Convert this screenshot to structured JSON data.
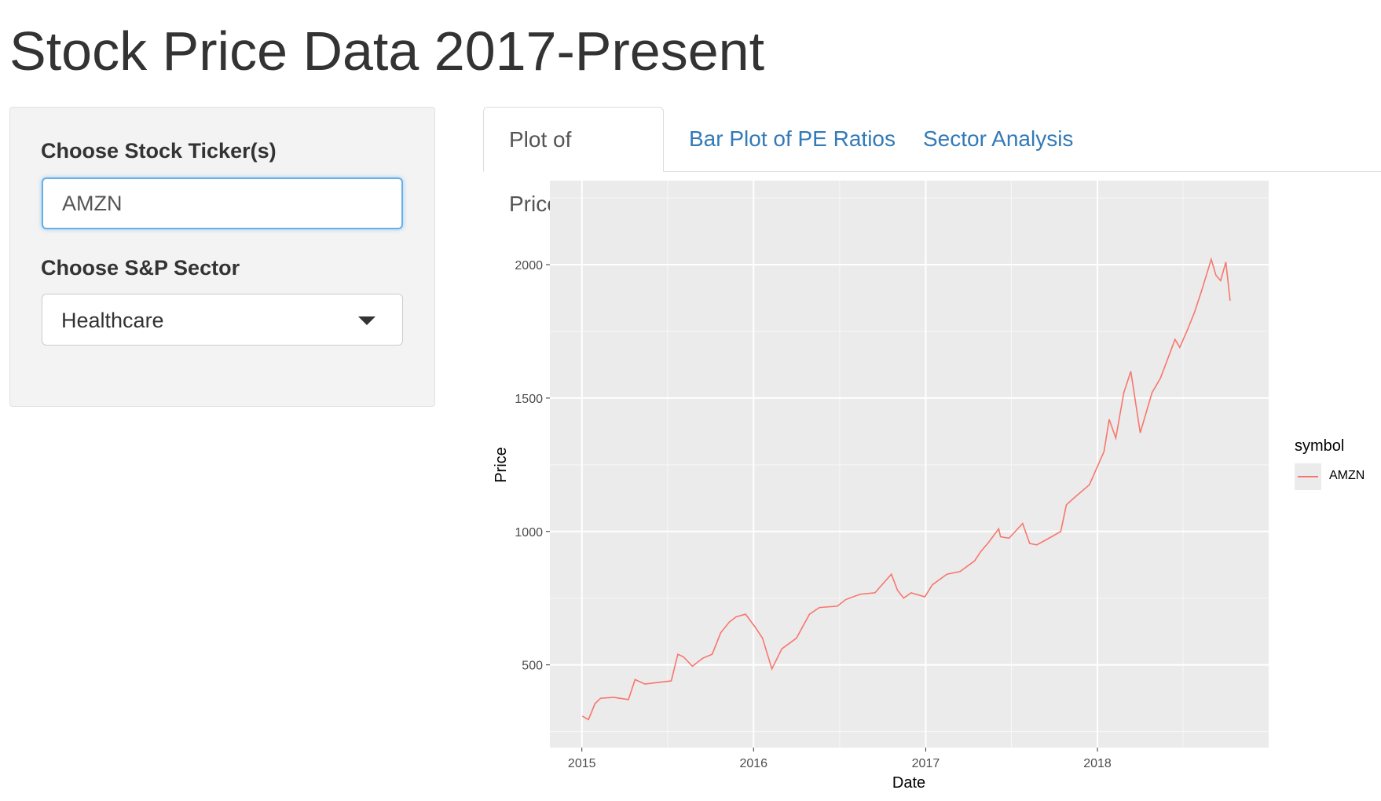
{
  "page": {
    "title": "Stock Price Data 2017-Present"
  },
  "sidebar": {
    "ticker_label": "Choose Stock Ticker(s)",
    "ticker_value": "AMZN",
    "sector_label": "Choose S&P Sector",
    "sector_value": "Healthcare",
    "sector_icon": "caret-down-icon"
  },
  "tabs": [
    {
      "label": "Plot of Prices",
      "active": true
    },
    {
      "label": "Bar Plot of PE Ratios",
      "active": false
    },
    {
      "label": "Sector Analysis",
      "active": false
    }
  ],
  "colors": {
    "line": "#f8766d",
    "panel_bg": "#ebebeb",
    "link": "#337ab7"
  },
  "chart_data": {
    "type": "line",
    "title": "",
    "xlabel": "Date",
    "ylabel": "Price",
    "x_ticks": [
      "2015",
      "2016",
      "2017",
      "2018"
    ],
    "y_ticks": [
      500,
      1000,
      1500,
      2000
    ],
    "xlim": [
      "2014-10-25",
      "2018-12-31"
    ],
    "ylim": [
      190,
      2315
    ],
    "grid": true,
    "legend": {
      "title": "symbol",
      "position": "right",
      "entries": [
        "AMZN"
      ]
    },
    "series": [
      {
        "name": "AMZN",
        "x": [
          "2015-01-02",
          "2015-01-15",
          "2015-01-29",
          "2015-02-10",
          "2015-03-10",
          "2015-04-10",
          "2015-04-24",
          "2015-05-15",
          "2015-06-15",
          "2015-07-10",
          "2015-07-24",
          "2015-08-05",
          "2015-08-24",
          "2015-09-15",
          "2015-10-05",
          "2015-10-23",
          "2015-11-10",
          "2015-11-25",
          "2015-12-15",
          "2016-01-05",
          "2016-01-20",
          "2016-02-09",
          "2016-03-01",
          "2016-04-01",
          "2016-04-29",
          "2016-05-20",
          "2016-06-27",
          "2016-07-15",
          "2016-08-15",
          "2016-09-15",
          "2016-10-20",
          "2016-11-02",
          "2016-11-15",
          "2016-12-01",
          "2016-12-30",
          "2017-01-15",
          "2017-02-15",
          "2017-03-15",
          "2017-04-15",
          "2017-04-28",
          "2017-05-15",
          "2017-06-05",
          "2017-06-09",
          "2017-06-27",
          "2017-07-26",
          "2017-08-10",
          "2017-08-25",
          "2017-09-15",
          "2017-10-15",
          "2017-10-27",
          "2017-11-15",
          "2017-12-15",
          "2018-01-15",
          "2018-01-26",
          "2018-02-09",
          "2018-02-26",
          "2018-03-13",
          "2018-04-02",
          "2018-04-27",
          "2018-05-15",
          "2018-06-15",
          "2018-06-25",
          "2018-07-10",
          "2018-07-26",
          "2018-08-10",
          "2018-08-31",
          "2018-09-10",
          "2018-09-20",
          "2018-10-01",
          "2018-10-10"
        ],
        "values": [
          308,
          295,
          355,
          375,
          378,
          370,
          445,
          428,
          435,
          440,
          540,
          530,
          495,
          525,
          540,
          620,
          660,
          680,
          690,
          640,
          600,
          485,
          560,
          600,
          690,
          715,
          720,
          745,
          765,
          770,
          840,
          780,
          750,
          770,
          755,
          800,
          840,
          850,
          890,
          925,
          960,
          1010,
          980,
          975,
          1030,
          955,
          950,
          970,
          1000,
          1100,
          1130,
          1175,
          1300,
          1420,
          1350,
          1520,
          1600,
          1370,
          1520,
          1575,
          1720,
          1690,
          1750,
          1820,
          1900,
          2020,
          1960,
          1940,
          2010,
          1865
        ]
      }
    ]
  }
}
